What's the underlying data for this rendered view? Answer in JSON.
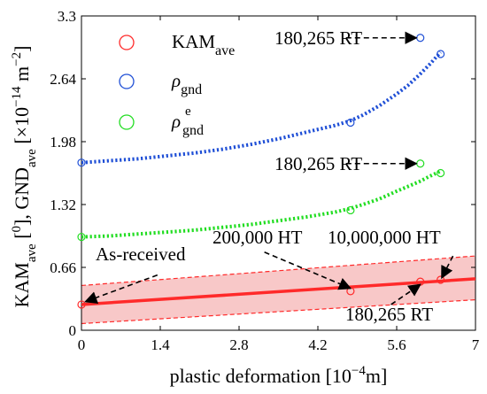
{
  "chart_data": {
    "type": "scatter",
    "title": "",
    "xlabel": "plastic deformation [10",
    "xlabel_exp": "−4",
    "xlabel_unit": "m]",
    "ylabel": "KAM",
    "ylabel_parts": [
      "KAM",
      "ave",
      " [",
      "0",
      "], GND",
      "ave",
      " [×10",
      "−14",
      " m",
      "−2",
      "]"
    ],
    "xlim": [
      0,
      7
    ],
    "ylim": [
      0,
      3.3
    ],
    "x_ticks": [
      0,
      1.4,
      2.8,
      4.2,
      5.6,
      7
    ],
    "x_tick_labels": [
      "0",
      "1.4",
      "2.8",
      "4.2",
      "5.6",
      "7"
    ],
    "y_ticks": [
      0,
      0.66,
      1.32,
      1.98,
      2.64,
      3.3
    ],
    "y_tick_labels": [
      "0",
      "0.66",
      "1.32",
      "1.98",
      "2.64",
      "3.3"
    ],
    "grid": false,
    "legend_position": "top-left",
    "series": [
      {
        "name": "KAM",
        "name_sub": "ave",
        "name_sup": "",
        "color": "#ff2a2a",
        "markers": {
          "x": [
            0,
            4.78,
            6.02,
            6.38
          ],
          "y": [
            0.27,
            0.41,
            0.51,
            0.53
          ]
        },
        "fit_line": {
          "x": [
            0,
            7
          ],
          "y": [
            0.27,
            0.54
          ]
        },
        "band_upper": {
          "x": [
            0,
            7
          ],
          "y": [
            0.47,
            0.78
          ]
        },
        "band_lower": {
          "x": [
            0,
            7
          ],
          "y": [
            0.07,
            0.32
          ]
        }
      },
      {
        "name": "ρ",
        "name_sub": "gnd",
        "name_sup": "",
        "color": "#1f4fd6",
        "markers": {
          "x": [
            0,
            4.78,
            6.02,
            6.38
          ],
          "y": [
            1.76,
            2.18,
            3.07,
            2.9
          ]
        },
        "fit_curve": {
          "x": [
            0,
            0.5,
            1,
            1.5,
            2,
            2.5,
            3,
            3.5,
            4,
            4.5,
            4.78,
            5,
            5.3,
            5.6,
            5.8,
            6,
            6.2,
            6.38
          ],
          "y": [
            1.76,
            1.78,
            1.8,
            1.83,
            1.86,
            1.9,
            1.95,
            2.01,
            2.08,
            2.15,
            2.2,
            2.26,
            2.36,
            2.48,
            2.57,
            2.68,
            2.8,
            2.92
          ]
        }
      },
      {
        "name": "ρ",
        "name_sub": "gnd",
        "name_sup": "e",
        "color": "#22dd22",
        "markers": {
          "x": [
            0,
            4.78,
            6.02,
            6.38
          ],
          "y": [
            0.98,
            1.26,
            1.75,
            1.65
          ]
        },
        "fit_curve": {
          "x": [
            0,
            0.5,
            1,
            1.5,
            2,
            2.5,
            3,
            3.5,
            4,
            4.5,
            4.78,
            5,
            5.3,
            5.6,
            5.8,
            6,
            6.2,
            6.38
          ],
          "y": [
            0.98,
            0.99,
            1.01,
            1.03,
            1.05,
            1.08,
            1.11,
            1.15,
            1.19,
            1.24,
            1.28,
            1.32,
            1.38,
            1.46,
            1.51,
            1.56,
            1.62,
            1.67
          ]
        }
      }
    ],
    "annotations": [
      {
        "text": "180,265 RT",
        "from": [
          4.7,
          3.07
        ],
        "to": [
          5.95,
          3.07
        ]
      },
      {
        "text": "180,265 RT",
        "from": [
          4.7,
          1.75
        ],
        "to": [
          5.95,
          1.75
        ]
      },
      {
        "text": "As-received",
        "from": [
          1.35,
          0.58
        ],
        "to": [
          0.07,
          0.3
        ]
      },
      {
        "text": "200,000 HT",
        "from": [
          3.25,
          0.82
        ],
        "to": [
          4.78,
          0.44
        ]
      },
      {
        "text": "10,000,000 HT",
        "from": [
          6.6,
          0.78
        ],
        "to": [
          6.4,
          0.55
        ]
      },
      {
        "text": "180,265 RT",
        "from": [
          5.5,
          0.27
        ],
        "to": [
          6.02,
          0.48
        ]
      }
    ]
  }
}
